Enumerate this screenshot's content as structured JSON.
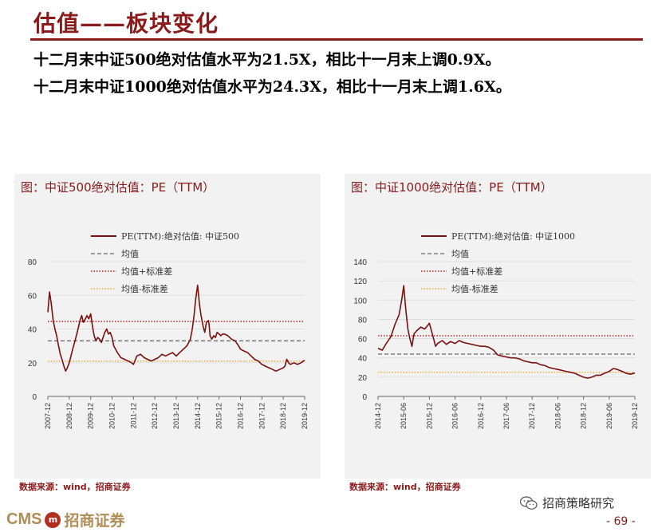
{
  "page": {
    "title": "估值——板块变化",
    "lead_lines": [
      "十二月末中证500绝对估值水平为21.5X，相比十一月末上调0.9X。",
      "十二月末中证1000绝对估值水平为24.3X，相比十一月末上调1.6X。"
    ],
    "footer": {
      "logo_latin": "CMS",
      "logo_mark": "m",
      "logo_cn": "招商证券",
      "wechat_label": "招商策略研究",
      "page_number": "- 69 -"
    }
  },
  "chart_data": [
    {
      "type": "line",
      "title": "图：中证500绝对估值：PE（TTM）",
      "source": "数据来源：wind，招商证券",
      "y_ticks": [
        0,
        20,
        40,
        60,
        80
      ],
      "ylim": [
        0,
        80
      ],
      "x_tick_labels": [
        "2007-12",
        "2008-12",
        "2009-12",
        "2010-12",
        "2011-12",
        "2012-12",
        "2013-12",
        "2014-12",
        "2015-12",
        "2016-12",
        "2017-12",
        "2018-12",
        "2019-12"
      ],
      "xlim": [
        2007.92,
        2019.92
      ],
      "grid": true,
      "legend_position": "top-center",
      "colors": {
        "series": "#7a1010",
        "mean": "#7f7f7f",
        "upper": "#b22222",
        "lower": "#f0a830"
      },
      "legend": [
        "PE(TTM):绝对估值: 中证500",
        "均值",
        "均值+标准差",
        "均值-标准差"
      ],
      "reference_lines": {
        "mean": 33,
        "upper": 44.5,
        "lower": 21
      },
      "series": {
        "name": "PE(TTM):绝对估值: 中证500",
        "x": [
          2007.92,
          2008.0,
          2008.08,
          2008.17,
          2008.25,
          2008.33,
          2008.42,
          2008.5,
          2008.58,
          2008.67,
          2008.75,
          2008.83,
          2008.92,
          2009.0,
          2009.08,
          2009.17,
          2009.25,
          2009.33,
          2009.42,
          2009.5,
          2009.58,
          2009.67,
          2009.75,
          2009.83,
          2009.92,
          2010.0,
          2010.08,
          2010.17,
          2010.25,
          2010.33,
          2010.42,
          2010.5,
          2010.58,
          2010.67,
          2010.75,
          2010.83,
          2010.92,
          2011.0,
          2011.17,
          2011.33,
          2011.5,
          2011.67,
          2011.83,
          2011.92,
          2012.08,
          2012.25,
          2012.42,
          2012.58,
          2012.75,
          2012.92,
          2013.08,
          2013.25,
          2013.42,
          2013.58,
          2013.75,
          2013.92,
          2014.08,
          2014.25,
          2014.42,
          2014.58,
          2014.67,
          2014.75,
          2014.83,
          2014.92,
          2015.0,
          2015.08,
          2015.17,
          2015.25,
          2015.33,
          2015.42,
          2015.46,
          2015.5,
          2015.58,
          2015.67,
          2015.75,
          2015.83,
          2015.92,
          2016.0,
          2016.08,
          2016.17,
          2016.33,
          2016.5,
          2016.67,
          2016.83,
          2016.92,
          2017.08,
          2017.25,
          2017.42,
          2017.58,
          2017.75,
          2017.92,
          2018.08,
          2018.25,
          2018.42,
          2018.58,
          2018.75,
          2018.92,
          2019.0,
          2019.08,
          2019.17,
          2019.25,
          2019.42,
          2019.58,
          2019.75,
          2019.92
        ],
        "values": [
          50,
          62,
          55,
          45,
          40,
          36,
          30,
          25,
          22,
          18,
          15,
          17,
          20,
          24,
          28,
          32,
          36,
          40,
          45,
          48,
          44,
          46,
          48,
          46,
          49,
          42,
          36,
          33,
          35,
          34,
          32,
          35,
          38,
          40,
          37,
          38,
          35,
          30,
          26,
          23,
          22,
          21,
          20,
          19,
          24,
          25,
          23,
          22,
          21,
          22,
          23,
          25,
          24,
          25,
          26,
          24,
          26,
          28,
          30,
          34,
          40,
          48,
          58,
          66,
          55,
          48,
          42,
          38,
          44,
          45,
          42,
          36,
          34,
          36,
          35,
          38,
          37,
          36,
          37,
          37,
          36,
          34,
          33,
          30,
          28,
          27,
          26,
          24,
          22,
          21,
          19,
          18,
          17,
          16,
          15,
          16,
          17,
          18,
          22,
          20,
          19,
          20,
          19,
          20,
          21.5
        ]
      }
    },
    {
      "type": "line",
      "title": "图：中证1000绝对估值：PE（TTM）",
      "source": "数据来源：wind，招商证券",
      "y_ticks": [
        0,
        20,
        40,
        60,
        80,
        100,
        120,
        140
      ],
      "ylim": [
        0,
        140
      ],
      "x_tick_labels": [
        "2014-12",
        "2015-06",
        "2015-12",
        "2016-06",
        "2016-12",
        "2017-06",
        "2017-12",
        "2018-06",
        "2018-12",
        "2019-06",
        "2019-12"
      ],
      "xlim": [
        2014.92,
        2019.92
      ],
      "grid": true,
      "legend_position": "top-center",
      "colors": {
        "series": "#7a1010",
        "mean": "#7f7f7f",
        "upper": "#b22222",
        "lower": "#f0a830"
      },
      "legend": [
        "PE(TTM):绝对估值: 中证1000",
        "均值",
        "均值+标准差",
        "均值-标准差"
      ],
      "reference_lines": {
        "mean": 44,
        "upper": 63,
        "lower": 25
      },
      "series": {
        "name": "PE(TTM):绝对估值: 中证1000",
        "x": [
          2014.92,
          2015.0,
          2015.08,
          2015.17,
          2015.25,
          2015.33,
          2015.38,
          2015.42,
          2015.46,
          2015.5,
          2015.54,
          2015.58,
          2015.62,
          2015.67,
          2015.75,
          2015.83,
          2015.92,
          2016.0,
          2016.04,
          2016.08,
          2016.17,
          2016.25,
          2016.33,
          2016.42,
          2016.5,
          2016.58,
          2016.67,
          2016.75,
          2016.83,
          2016.92,
          2017.0,
          2017.08,
          2017.17,
          2017.25,
          2017.33,
          2017.42,
          2017.5,
          2017.58,
          2017.67,
          2017.75,
          2017.83,
          2017.92,
          2018.0,
          2018.08,
          2018.17,
          2018.25,
          2018.33,
          2018.42,
          2018.5,
          2018.58,
          2018.67,
          2018.75,
          2018.83,
          2018.92,
          2019.0,
          2019.08,
          2019.17,
          2019.25,
          2019.33,
          2019.42,
          2019.5,
          2019.58,
          2019.67,
          2019.75,
          2019.83,
          2019.92
        ],
        "values": [
          50,
          48,
          55,
          62,
          75,
          85,
          100,
          115,
          90,
          70,
          60,
          52,
          65,
          68,
          72,
          70,
          76,
          60,
          52,
          55,
          58,
          54,
          57,
          55,
          58,
          56,
          55,
          54,
          53,
          52,
          52,
          51,
          48,
          43,
          42,
          41,
          40,
          40,
          39,
          37,
          36,
          35,
          35,
          33,
          32,
          30,
          29,
          28,
          27,
          26,
          25,
          24,
          22,
          20,
          19,
          20,
          22,
          22,
          24,
          26,
          29,
          28,
          26,
          24,
          23,
          24.3
        ]
      }
    }
  ]
}
